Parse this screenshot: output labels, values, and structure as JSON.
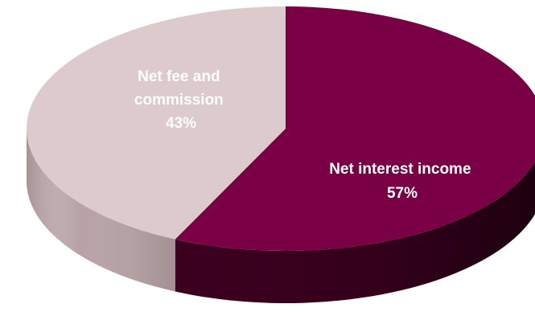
{
  "chart_data": {
    "type": "pie",
    "style": "3d",
    "slices": [
      {
        "name": "Net interest income",
        "value": 57,
        "label_lines": [
          "Net interest income",
          "57%"
        ],
        "color": "#7A0046",
        "side_color": "#3F0021"
      },
      {
        "name": "Net fee and commission",
        "value": 43,
        "label_lines": [
          "Net fee and",
          "commission",
          "43%"
        ],
        "color": "#DDCACC",
        "side_color": "#B7A3A6"
      }
    ]
  }
}
